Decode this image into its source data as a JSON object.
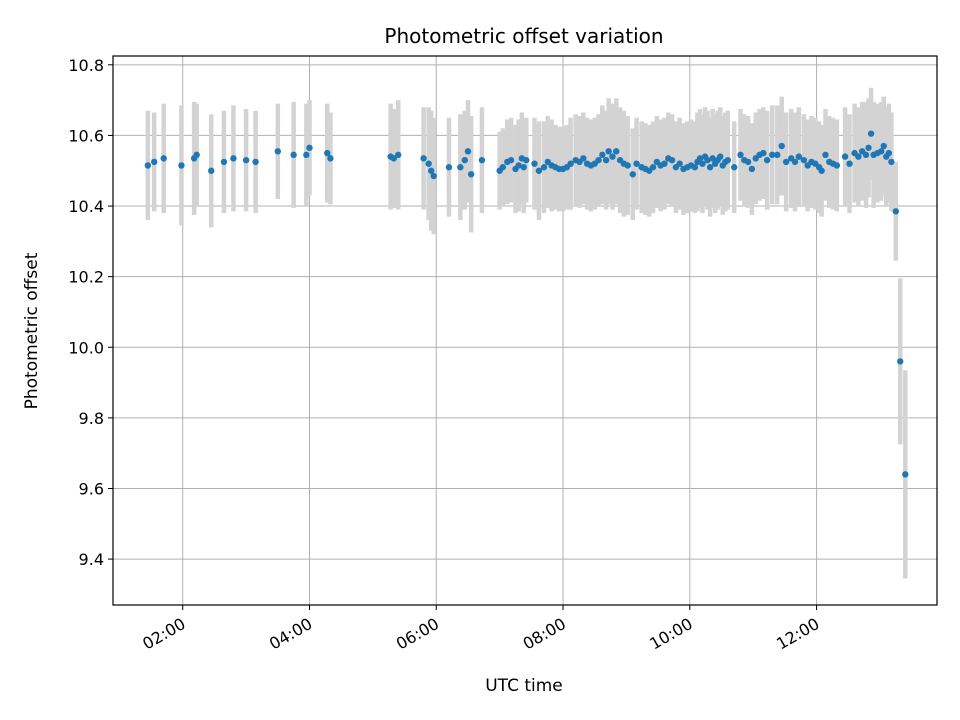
{
  "chart_data": {
    "type": "scatter",
    "title": "Photometric offset variation",
    "xlabel": "UTC time",
    "ylabel": "Photometric offset",
    "x_unit": "hours UTC",
    "xlim": [
      0.9,
      13.9
    ],
    "ylim": [
      9.27,
      10.825
    ],
    "xticks": [
      {
        "value": 2,
        "label": "02:00"
      },
      {
        "value": 4,
        "label": "04:00"
      },
      {
        "value": 6,
        "label": "06:00"
      },
      {
        "value": 8,
        "label": "08:00"
      },
      {
        "value": 10,
        "label": "10:00"
      },
      {
        "value": 12,
        "label": "12:00"
      }
    ],
    "yticks": [
      {
        "value": 9.4,
        "label": "9.4"
      },
      {
        "value": 9.6,
        "label": "9.6"
      },
      {
        "value": 9.8,
        "label": "9.8"
      },
      {
        "value": 10.0,
        "label": "10.0"
      },
      {
        "value": 10.2,
        "label": "10.2"
      },
      {
        "value": 10.4,
        "label": "10.4"
      },
      {
        "value": 10.6,
        "label": "10.6"
      },
      {
        "value": 10.8,
        "label": "10.8"
      }
    ],
    "grid": true,
    "marker_color": "#1f77b4",
    "errorbar_color": "#d3d3d3",
    "points": [
      [
        1.45,
        10.515,
        0.155
      ],
      [
        1.55,
        10.525,
        0.14
      ],
      [
        1.7,
        10.535,
        0.155
      ],
      [
        1.98,
        10.515,
        0.17
      ],
      [
        2.18,
        10.535,
        0.16
      ],
      [
        2.22,
        10.545,
        0.145
      ],
      [
        2.45,
        10.5,
        0.16
      ],
      [
        2.65,
        10.525,
        0.145
      ],
      [
        2.8,
        10.535,
        0.15
      ],
      [
        3.0,
        10.53,
        0.145
      ],
      [
        3.15,
        10.525,
        0.145
      ],
      [
        3.5,
        10.555,
        0.135
      ],
      [
        3.75,
        10.545,
        0.15
      ],
      [
        3.95,
        10.545,
        0.145
      ],
      [
        4.0,
        10.565,
        0.135
      ],
      [
        4.28,
        10.55,
        0.14
      ],
      [
        4.33,
        10.535,
        0.13
      ],
      [
        5.28,
        10.54,
        0.15
      ],
      [
        5.33,
        10.535,
        0.14
      ],
      [
        5.4,
        10.545,
        0.155
      ],
      [
        5.8,
        10.535,
        0.145
      ],
      [
        5.88,
        10.52,
        0.16
      ],
      [
        5.92,
        10.5,
        0.17
      ],
      [
        5.96,
        10.485,
        0.165
      ],
      [
        6.2,
        10.51,
        0.14
      ],
      [
        6.38,
        10.51,
        0.15
      ],
      [
        6.45,
        10.53,
        0.14
      ],
      [
        6.5,
        10.555,
        0.145
      ],
      [
        6.55,
        10.49,
        0.165
      ],
      [
        6.72,
        10.53,
        0.15
      ],
      [
        7.0,
        10.5,
        0.11
      ],
      [
        7.05,
        10.51,
        0.11
      ],
      [
        7.12,
        10.525,
        0.12
      ],
      [
        7.18,
        10.53,
        0.12
      ],
      [
        7.25,
        10.505,
        0.125
      ],
      [
        7.3,
        10.515,
        0.13
      ],
      [
        7.35,
        10.535,
        0.13
      ],
      [
        7.38,
        10.51,
        0.13
      ],
      [
        7.42,
        10.53,
        0.12
      ],
      [
        7.55,
        10.52,
        0.13
      ],
      [
        7.62,
        10.5,
        0.14
      ],
      [
        7.7,
        10.51,
        0.13
      ],
      [
        7.76,
        10.525,
        0.13
      ],
      [
        7.82,
        10.515,
        0.13
      ],
      [
        7.88,
        10.51,
        0.12
      ],
      [
        7.94,
        10.505,
        0.12
      ],
      [
        8.0,
        10.505,
        0.12
      ],
      [
        8.06,
        10.51,
        0.12
      ],
      [
        8.12,
        10.52,
        0.13
      ],
      [
        8.2,
        10.53,
        0.13
      ],
      [
        8.26,
        10.525,
        0.13
      ],
      [
        8.32,
        10.535,
        0.13
      ],
      [
        8.38,
        10.52,
        0.13
      ],
      [
        8.44,
        10.515,
        0.13
      ],
      [
        8.5,
        10.52,
        0.13
      ],
      [
        8.56,
        10.53,
        0.13
      ],
      [
        8.62,
        10.545,
        0.14
      ],
      [
        8.68,
        10.53,
        0.14
      ],
      [
        8.72,
        10.555,
        0.15
      ],
      [
        8.78,
        10.54,
        0.15
      ],
      [
        8.84,
        10.555,
        0.15
      ],
      [
        8.9,
        10.53,
        0.15
      ],
      [
        8.96,
        10.52,
        0.15
      ],
      [
        9.02,
        10.515,
        0.14
      ],
      [
        9.1,
        10.49,
        0.13
      ],
      [
        9.16,
        10.52,
        0.13
      ],
      [
        9.24,
        10.51,
        0.13
      ],
      [
        9.3,
        10.505,
        0.13
      ],
      [
        9.36,
        10.5,
        0.13
      ],
      [
        9.42,
        10.51,
        0.13
      ],
      [
        9.48,
        10.525,
        0.13
      ],
      [
        9.54,
        10.515,
        0.13
      ],
      [
        9.6,
        10.52,
        0.13
      ],
      [
        9.66,
        10.535,
        0.13
      ],
      [
        9.72,
        10.53,
        0.13
      ],
      [
        9.78,
        10.51,
        0.13
      ],
      [
        9.84,
        10.52,
        0.13
      ],
      [
        9.9,
        10.505,
        0.13
      ],
      [
        9.96,
        10.51,
        0.13
      ],
      [
        10.02,
        10.515,
        0.13
      ],
      [
        10.08,
        10.51,
        0.13
      ],
      [
        10.12,
        10.525,
        0.14
      ],
      [
        10.16,
        10.535,
        0.14
      ],
      [
        10.2,
        10.52,
        0.14
      ],
      [
        10.24,
        10.54,
        0.14
      ],
      [
        10.28,
        10.53,
        0.14
      ],
      [
        10.32,
        10.51,
        0.14
      ],
      [
        10.36,
        10.535,
        0.14
      ],
      [
        10.4,
        10.52,
        0.14
      ],
      [
        10.44,
        10.53,
        0.14
      ],
      [
        10.48,
        10.54,
        0.14
      ],
      [
        10.52,
        10.515,
        0.14
      ],
      [
        10.56,
        10.525,
        0.14
      ],
      [
        10.6,
        10.53,
        0.14
      ],
      [
        10.7,
        10.51,
        0.13
      ],
      [
        10.8,
        10.545,
        0.13
      ],
      [
        10.86,
        10.53,
        0.13
      ],
      [
        10.92,
        10.525,
        0.13
      ],
      [
        10.98,
        10.505,
        0.13
      ],
      [
        11.04,
        10.535,
        0.13
      ],
      [
        11.1,
        10.545,
        0.13
      ],
      [
        11.16,
        10.55,
        0.13
      ],
      [
        11.22,
        10.53,
        0.14
      ],
      [
        11.3,
        10.545,
        0.14
      ],
      [
        11.38,
        10.545,
        0.14
      ],
      [
        11.45,
        10.57,
        0.14
      ],
      [
        11.52,
        10.525,
        0.14
      ],
      [
        11.6,
        10.535,
        0.14
      ],
      [
        11.66,
        10.525,
        0.14
      ],
      [
        11.72,
        10.54,
        0.14
      ],
      [
        11.8,
        10.53,
        0.13
      ],
      [
        11.86,
        10.515,
        0.13
      ],
      [
        11.92,
        10.525,
        0.13
      ],
      [
        11.98,
        10.52,
        0.13
      ],
      [
        12.04,
        10.51,
        0.13
      ],
      [
        12.08,
        10.5,
        0.13
      ],
      [
        12.14,
        10.545,
        0.13
      ],
      [
        12.2,
        10.525,
        0.13
      ],
      [
        12.26,
        10.52,
        0.13
      ],
      [
        12.32,
        10.515,
        0.13
      ],
      [
        12.45,
        10.54,
        0.14
      ],
      [
        12.52,
        10.52,
        0.14
      ],
      [
        12.6,
        10.55,
        0.14
      ],
      [
        12.66,
        10.54,
        0.14
      ],
      [
        12.72,
        10.555,
        0.14
      ],
      [
        12.78,
        10.545,
        0.15
      ],
      [
        12.82,
        10.565,
        0.14
      ],
      [
        12.86,
        10.605,
        0.13
      ],
      [
        12.9,
        10.545,
        0.15
      ],
      [
        12.96,
        10.55,
        0.14
      ],
      [
        13.02,
        10.555,
        0.14
      ],
      [
        13.06,
        10.57,
        0.14
      ],
      [
        13.1,
        10.54,
        0.14
      ],
      [
        13.14,
        10.55,
        0.14
      ],
      [
        13.18,
        10.525,
        0.14
      ],
      [
        13.25,
        10.385,
        0.14
      ],
      [
        13.32,
        9.96,
        0.235
      ],
      [
        13.4,
        9.64,
        0.295
      ]
    ]
  }
}
